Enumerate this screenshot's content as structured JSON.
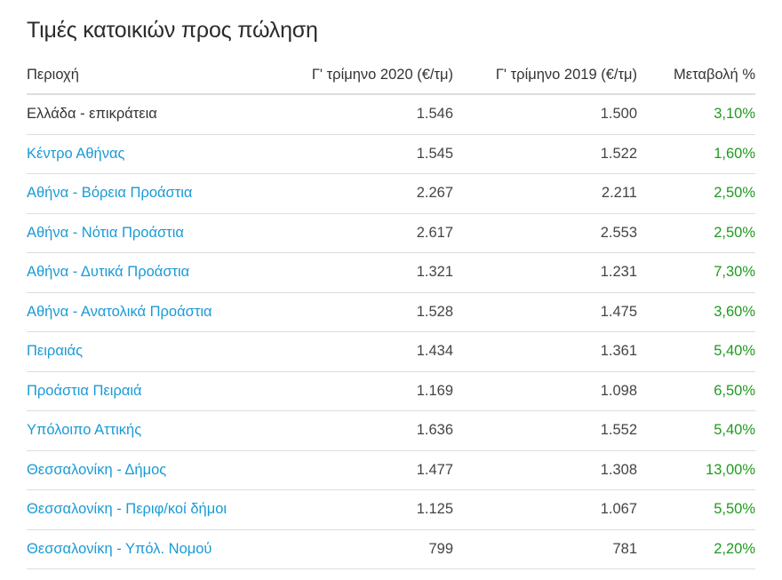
{
  "title": "Τιμές κατοικιών προς πώληση",
  "colors": {
    "link": "#1a9ad6",
    "positive": "#1f9a1f",
    "text": "#333333",
    "border": "#dddddd"
  },
  "columns": [
    "Περιοχή",
    "Γ' τρίμηνο 2020 (€/τμ)",
    "Γ' τρίμηνο 2019 (€/τμ)",
    "Μεταβολή %"
  ],
  "rows": [
    {
      "region": "Ελλάδα - επικράτεια",
      "q3_2020": "1.546",
      "q3_2019": "1.500",
      "change": "3,10%",
      "link": false
    },
    {
      "region": "Κέντρο Αθήνας",
      "q3_2020": "1.545",
      "q3_2019": "1.522",
      "change": "1,60%",
      "link": true
    },
    {
      "region": "Αθήνα - Βόρεια Προάστια",
      "q3_2020": "2.267",
      "q3_2019": "2.211",
      "change": "2,50%",
      "link": true
    },
    {
      "region": "Αθήνα - Νότια Προάστια",
      "q3_2020": "2.617",
      "q3_2019": "2.553",
      "change": "2,50%",
      "link": true
    },
    {
      "region": "Αθήνα - Δυτικά Προάστια",
      "q3_2020": "1.321",
      "q3_2019": "1.231",
      "change": "7,30%",
      "link": true
    },
    {
      "region": "Αθήνα - Ανατολικά Προάστια",
      "q3_2020": "1.528",
      "q3_2019": "1.475",
      "change": "3,60%",
      "link": true
    },
    {
      "region": "Πειραιάς",
      "q3_2020": "1.434",
      "q3_2019": "1.361",
      "change": "5,40%",
      "link": true
    },
    {
      "region": "Προάστια Πειραιά",
      "q3_2020": "1.169",
      "q3_2019": "1.098",
      "change": "6,50%",
      "link": true
    },
    {
      "region": "Υπόλοιπο Αττικής",
      "q3_2020": "1.636",
      "q3_2019": "1.552",
      "change": "5,40%",
      "link": true
    },
    {
      "region": "Θεσσαλονίκη - Δήμος",
      "q3_2020": "1.477",
      "q3_2019": "1.308",
      "change": "13,00%",
      "link": true
    },
    {
      "region": "Θεσσαλονίκη - Περιφ/κοί δήμοι",
      "q3_2020": "1.125",
      "q3_2019": "1.067",
      "change": "5,50%",
      "link": true
    },
    {
      "region": "Θεσσαλονίκη - Υπόλ. Νομού",
      "q3_2020": "799",
      "q3_2019": "781",
      "change": "2,20%",
      "link": true
    }
  ]
}
